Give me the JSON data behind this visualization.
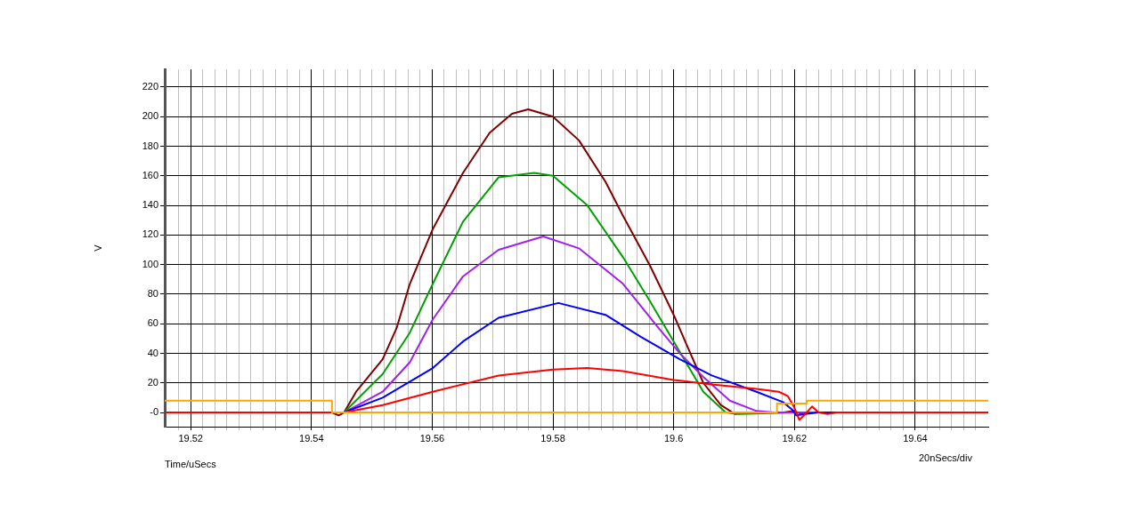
{
  "chart_data": {
    "type": "line",
    "ylabel": "V",
    "xlabel": "Time/uSecs",
    "annotations": [
      "20nSecs/div"
    ],
    "xlim": [
      19.5157,
      19.6521
    ],
    "ylim": [
      -9.6,
      232
    ],
    "xticks": [
      {
        "value": 19.518,
        "label": null
      },
      {
        "value": 19.52,
        "label": "19.52"
      },
      {
        "value": 19.522,
        "label": null
      },
      {
        "value": 19.524,
        "label": null
      },
      {
        "value": 19.526,
        "label": null
      },
      {
        "value": 19.528,
        "label": null
      },
      {
        "value": 19.53,
        "label": null
      },
      {
        "value": 19.532,
        "label": null
      },
      {
        "value": 19.534,
        "label": null
      },
      {
        "value": 19.536,
        "label": null
      },
      {
        "value": 19.538,
        "label": null
      },
      {
        "value": 19.54,
        "label": "19.54"
      },
      {
        "value": 19.542,
        "label": null
      },
      {
        "value": 19.544,
        "label": null
      },
      {
        "value": 19.546,
        "label": null
      },
      {
        "value": 19.548,
        "label": null
      },
      {
        "value": 19.55,
        "label": null
      },
      {
        "value": 19.552,
        "label": null
      },
      {
        "value": 19.554,
        "label": null
      },
      {
        "value": 19.556,
        "label": null
      },
      {
        "value": 19.558,
        "label": null
      },
      {
        "value": 19.56,
        "label": "19.56"
      },
      {
        "value": 19.562,
        "label": null
      },
      {
        "value": 19.564,
        "label": null
      },
      {
        "value": 19.566,
        "label": null
      },
      {
        "value": 19.568,
        "label": null
      },
      {
        "value": 19.57,
        "label": null
      },
      {
        "value": 19.572,
        "label": null
      },
      {
        "value": 19.574,
        "label": null
      },
      {
        "value": 19.576,
        "label": null
      },
      {
        "value": 19.578,
        "label": null
      },
      {
        "value": 19.58,
        "label": "19.58"
      },
      {
        "value": 19.582,
        "label": null
      },
      {
        "value": 19.584,
        "label": null
      },
      {
        "value": 19.586,
        "label": null
      },
      {
        "value": 19.588,
        "label": null
      },
      {
        "value": 19.59,
        "label": null
      },
      {
        "value": 19.592,
        "label": null
      },
      {
        "value": 19.594,
        "label": null
      },
      {
        "value": 19.596,
        "label": null
      },
      {
        "value": 19.598,
        "label": null
      },
      {
        "value": 19.6,
        "label": "19.6"
      },
      {
        "value": 19.602,
        "label": null
      },
      {
        "value": 19.604,
        "label": null
      },
      {
        "value": 19.606,
        "label": null
      },
      {
        "value": 19.608,
        "label": null
      },
      {
        "value": 19.61,
        "label": null
      },
      {
        "value": 19.612,
        "label": null
      },
      {
        "value": 19.614,
        "label": null
      },
      {
        "value": 19.616,
        "label": null
      },
      {
        "value": 19.618,
        "label": null
      },
      {
        "value": 19.62,
        "label": "19.62"
      },
      {
        "value": 19.622,
        "label": null
      },
      {
        "value": 19.624,
        "label": null
      },
      {
        "value": 19.626,
        "label": null
      },
      {
        "value": 19.628,
        "label": null
      },
      {
        "value": 19.63,
        "label": null
      },
      {
        "value": 19.632,
        "label": null
      },
      {
        "value": 19.634,
        "label": null
      },
      {
        "value": 19.636,
        "label": null
      },
      {
        "value": 19.638,
        "label": null
      },
      {
        "value": 19.64,
        "label": "19.64"
      },
      {
        "value": 19.642,
        "label": null
      },
      {
        "value": 19.644,
        "label": null
      },
      {
        "value": 19.646,
        "label": null
      },
      {
        "value": 19.648,
        "label": null
      },
      {
        "value": 19.65,
        "label": null
      }
    ],
    "yticks": [
      {
        "value": 0,
        "label": "-0"
      },
      20,
      40,
      60,
      80,
      100,
      120,
      140,
      160,
      180,
      200,
      220
    ],
    "grid": true,
    "marker": "none",
    "line_style": "solid",
    "series": [
      {
        "color": "#ffa500",
        "x": [
          19.5157,
          19.5434,
          19.5434,
          19.6171,
          19.6171,
          19.622,
          19.622,
          19.6521
        ],
        "values": [
          8,
          8,
          0,
          0,
          6,
          6,
          8,
          8
        ]
      },
      {
        "color": "#ff0000",
        "x": [
          19.5157,
          19.5454,
          19.5518,
          19.5601,
          19.571,
          19.58,
          19.5857,
          19.5916,
          19.6,
          19.6063,
          19.6137,
          19.6174,
          19.6189,
          19.6199,
          19.6208,
          19.6218,
          19.6229,
          19.624,
          19.6255,
          19.627,
          19.6521
        ],
        "values": [
          0,
          0,
          5,
          14,
          25,
          29,
          30,
          28,
          22,
          19,
          16,
          14,
          11,
          4,
          -5,
          -1,
          4,
          0,
          -1,
          0,
          0
        ]
      },
      {
        "color": "#0000ff",
        "x": [
          19.5157,
          19.5454,
          19.5518,
          19.5601,
          19.5651,
          19.571,
          19.5809,
          19.5887,
          19.5946,
          19.601,
          19.6063,
          19.6137,
          19.6181,
          19.6196,
          19.6203,
          19.6218,
          19.624,
          19.6521
        ],
        "values": [
          0,
          0,
          10,
          30,
          48,
          64,
          74,
          66,
          51,
          36,
          25,
          14,
          7,
          2,
          -2,
          -1,
          0,
          0
        ]
      },
      {
        "color": "#a020f0",
        "x": [
          19.5157,
          19.5454,
          19.5518,
          19.5563,
          19.5601,
          19.5651,
          19.571,
          19.5784,
          19.5843,
          19.5916,
          19.5975,
          19.601,
          19.6049,
          19.6093,
          19.6137,
          19.6167,
          19.6521
        ],
        "values": [
          0,
          0,
          14,
          34,
          63,
          92,
          110,
          119,
          111,
          87,
          57,
          40,
          24,
          8,
          1,
          0,
          0
        ]
      },
      {
        "color": "#00a000",
        "x": [
          19.5157,
          19.5454,
          19.5518,
          19.5563,
          19.5601,
          19.5651,
          19.571,
          19.5769,
          19.58,
          19.5857,
          19.5916,
          19.5961,
          19.6,
          19.6049,
          19.6086,
          19.6108,
          19.6199,
          19.6521
        ],
        "values": [
          0,
          0,
          26,
          54,
          87,
          129,
          159,
          162,
          160,
          140,
          105,
          75,
          48,
          14,
          0,
          -1,
          0,
          0
        ]
      },
      {
        "color": "#800000",
        "x": [
          19.5157,
          19.5434,
          19.5445,
          19.5454,
          19.5474,
          19.5518,
          19.5541,
          19.5563,
          19.5601,
          19.5651,
          19.5695,
          19.5732,
          19.5759,
          19.58,
          19.5843,
          19.5887,
          19.5916,
          19.5961,
          19.6,
          19.6019,
          19.6049,
          19.6078,
          19.6101,
          19.6123,
          19.6182,
          19.6199,
          19.6211,
          19.6225,
          19.6521
        ],
        "values": [
          0,
          0,
          -2,
          0,
          14,
          36,
          57,
          87,
          124,
          162,
          189,
          202,
          205,
          200,
          184,
          156,
          133,
          99,
          66,
          48,
          20,
          5,
          -1,
          0,
          0,
          1,
          -1,
          0,
          0
        ]
      }
    ]
  }
}
